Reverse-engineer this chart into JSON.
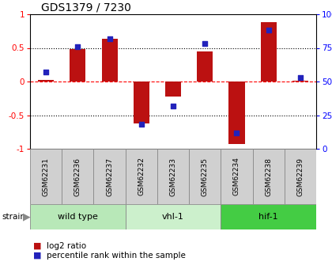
{
  "title": "GDS1379 / 7230",
  "samples": [
    "GSM62231",
    "GSM62236",
    "GSM62237",
    "GSM62232",
    "GSM62233",
    "GSM62235",
    "GSM62234",
    "GSM62238",
    "GSM62239"
  ],
  "log2_ratio": [
    0.02,
    0.48,
    0.63,
    -0.62,
    -0.22,
    0.45,
    -0.93,
    0.88,
    0.01
  ],
  "percentile_rank": [
    57,
    76,
    82,
    18,
    32,
    78,
    12,
    88,
    53
  ],
  "groups": [
    {
      "label": "wild type",
      "start": 0,
      "end": 3,
      "color": "#b8e8b8"
    },
    {
      "label": "vhl-1",
      "start": 3,
      "end": 6,
      "color": "#ccf0cc"
    },
    {
      "label": "hif-1",
      "start": 6,
      "end": 9,
      "color": "#44cc44"
    }
  ],
  "bar_color": "#bb1111",
  "dot_color": "#2222bb",
  "ylim": [
    -1,
    1
  ],
  "y2lim": [
    0,
    100
  ],
  "yticks": [
    -1,
    -0.5,
    0,
    0.5,
    1
  ],
  "ytick_labels": [
    "-1",
    "-0.5",
    "0",
    "0.5",
    "1"
  ],
  "y2ticks": [
    0,
    25,
    50,
    75,
    100
  ],
  "y2tick_labels": [
    "0",
    "25",
    "50",
    "75",
    "100%"
  ],
  "bg_color": "#ffffff",
  "label_bg": "#d0d0d0",
  "legend_items": [
    {
      "label": "log2 ratio",
      "color": "#bb1111"
    },
    {
      "label": "percentile rank within the sample",
      "color": "#2222bb"
    }
  ]
}
